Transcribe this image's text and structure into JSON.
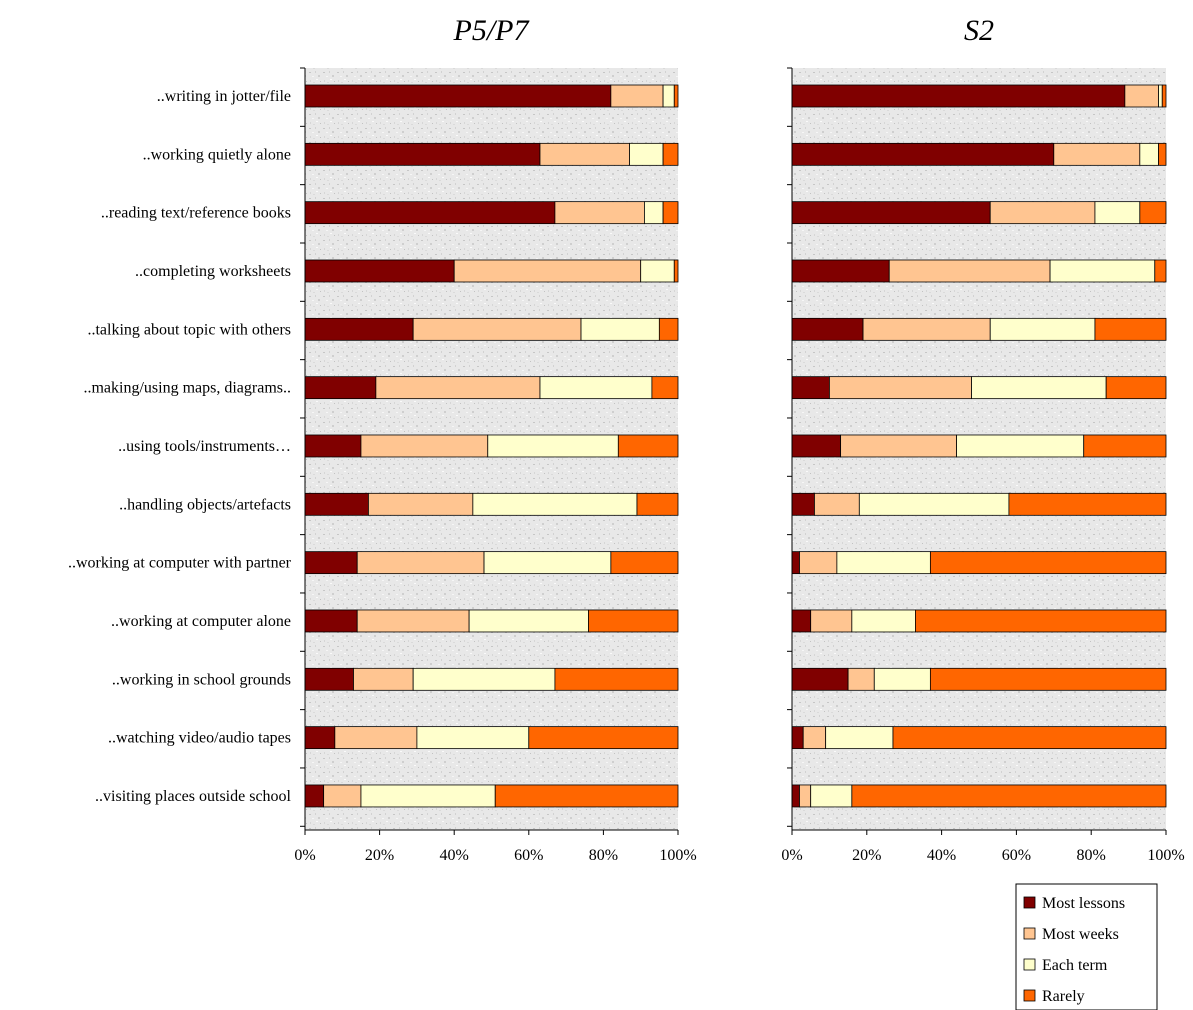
{
  "chart_data": [
    {
      "type": "bar",
      "orientation": "horizontal",
      "stacked": "percent",
      "title": "P5/P7",
      "categories": [
        "..writing in jotter/file",
        "..working quietly alone",
        "..reading text/reference books",
        "..completing worksheets",
        "..talking about topic with others",
        "..making/using maps, diagrams..",
        "..using tools/instruments…",
        "..handling objects/artefacts",
        "..working at computer with partner",
        "..working at computer alone",
        "..working in school grounds",
        "..watching video/audio tapes",
        "..visiting places outside school"
      ],
      "series": [
        {
          "name": "Most lessons",
          "color": "#800000",
          "values": [
            82,
            63,
            67,
            40,
            29,
            19,
            15,
            17,
            14,
            14,
            13,
            8,
            5
          ]
        },
        {
          "name": "Most weeks",
          "color": "#ffc591",
          "values": [
            14,
            24,
            24,
            50,
            45,
            44,
            34,
            28,
            34,
            30,
            16,
            22,
            10
          ]
        },
        {
          "name": "Each term",
          "color": "#ffffcc",
          "values": [
            3,
            9,
            5,
            9,
            21,
            30,
            35,
            44,
            34,
            32,
            38,
            30,
            36
          ]
        },
        {
          "name": "Rarely",
          "color": "#ff6600",
          "values": [
            1,
            4,
            4,
            1,
            5,
            7,
            16,
            11,
            18,
            24,
            33,
            40,
            49
          ]
        }
      ],
      "xlim": [
        0,
        100
      ],
      "xticks": [
        "0%",
        "20%",
        "40%",
        "60%",
        "80%",
        "100%"
      ],
      "grid": false
    },
    {
      "type": "bar",
      "orientation": "horizontal",
      "stacked": "percent",
      "title": "S2",
      "categories": [
        "..writing in jotter/file",
        "..working quietly alone",
        "..reading text/reference books",
        "..completing worksheets",
        "..talking about topic with others",
        "..making/using maps, diagrams..",
        "..using tools/instruments…",
        "..handling objects/artefacts",
        "..working at computer with partner",
        "..working at computer alone",
        "..working in school grounds",
        "..watching video/audio tapes",
        "..visiting places outside school"
      ],
      "series": [
        {
          "name": "Most lessons",
          "color": "#800000",
          "values": [
            89,
            70,
            53,
            26,
            19,
            10,
            13,
            6,
            2,
            5,
            15,
            3,
            2
          ]
        },
        {
          "name": "Most weeks",
          "color": "#ffc591",
          "values": [
            9,
            23,
            28,
            43,
            34,
            38,
            31,
            12,
            10,
            11,
            7,
            6,
            3
          ]
        },
        {
          "name": "Each term",
          "color": "#ffffcc",
          "values": [
            1,
            5,
            12,
            28,
            28,
            36,
            34,
            40,
            25,
            17,
            15,
            18,
            11
          ]
        },
        {
          "name": "Rarely",
          "color": "#ff6600",
          "values": [
            1,
            2,
            7,
            3,
            19,
            16,
            22,
            42,
            63,
            67,
            63,
            73,
            84
          ]
        }
      ],
      "xlim": [
        0,
        100
      ],
      "xticks": [
        "0%",
        "20%",
        "40%",
        "60%",
        "80%",
        "100%"
      ],
      "grid": false
    }
  ],
  "legend": {
    "placement": "bottom-right",
    "items": [
      {
        "name": "Most lessons",
        "color": "#800000"
      },
      {
        "name": "Most weeks",
        "color": "#ffc591"
      },
      {
        "name": "Each term",
        "color": "#ffffcc"
      },
      {
        "name": "Rarely",
        "color": "#ff6600"
      }
    ]
  }
}
